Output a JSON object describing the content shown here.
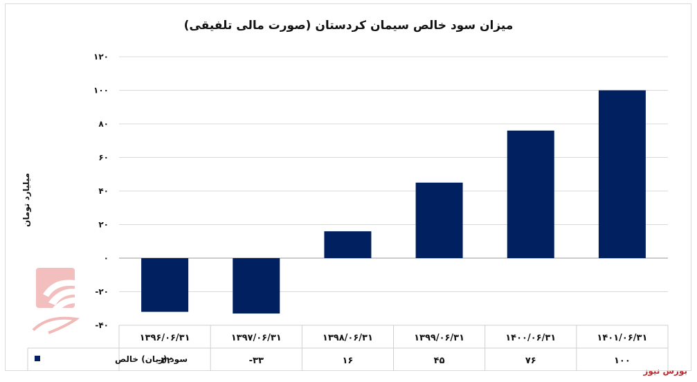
{
  "chart_data": {
    "type": "bar",
    "title": "میزان سود خالص سیمان کردستان (صورت مالی تلفیقی)",
    "ylabel": "میلیارد تومان",
    "categories": [
      "۱۳۹۶/۰۶/۳۱",
      "۱۳۹۷/۰۶/۳۱",
      "۱۳۹۸/۰۶/۳۱",
      "۱۳۹۹/۰۶/۳۱",
      "۱۴۰۰/۰۶/۳۱",
      "۱۴۰۱/۰۶/۳۱"
    ],
    "series": [
      {
        "name": "سود (زیان) خالص",
        "values": [
          -32,
          -33,
          16,
          45,
          76,
          100
        ],
        "labels": [
          "-۳۲",
          "-۳۳",
          "۱۶",
          "۴۵",
          "۷۶",
          "۱۰۰"
        ],
        "color": "#002060"
      }
    ],
    "ylim": [
      -40,
      120
    ],
    "yticks": [
      120,
      100,
      80,
      60,
      40,
      20,
      0,
      -20,
      -40
    ],
    "ytick_labels": [
      "۱۲۰",
      "۱۰۰",
      "۸۰",
      "۶۰",
      "۴۰",
      "۲۰",
      "۰",
      "-۲۰",
      "-۴۰"
    ],
    "grid": true,
    "legend": "data-table"
  },
  "footer": {
    "source": "بورس نیوز"
  },
  "logo": {
    "text": "بورس نیوز"
  }
}
